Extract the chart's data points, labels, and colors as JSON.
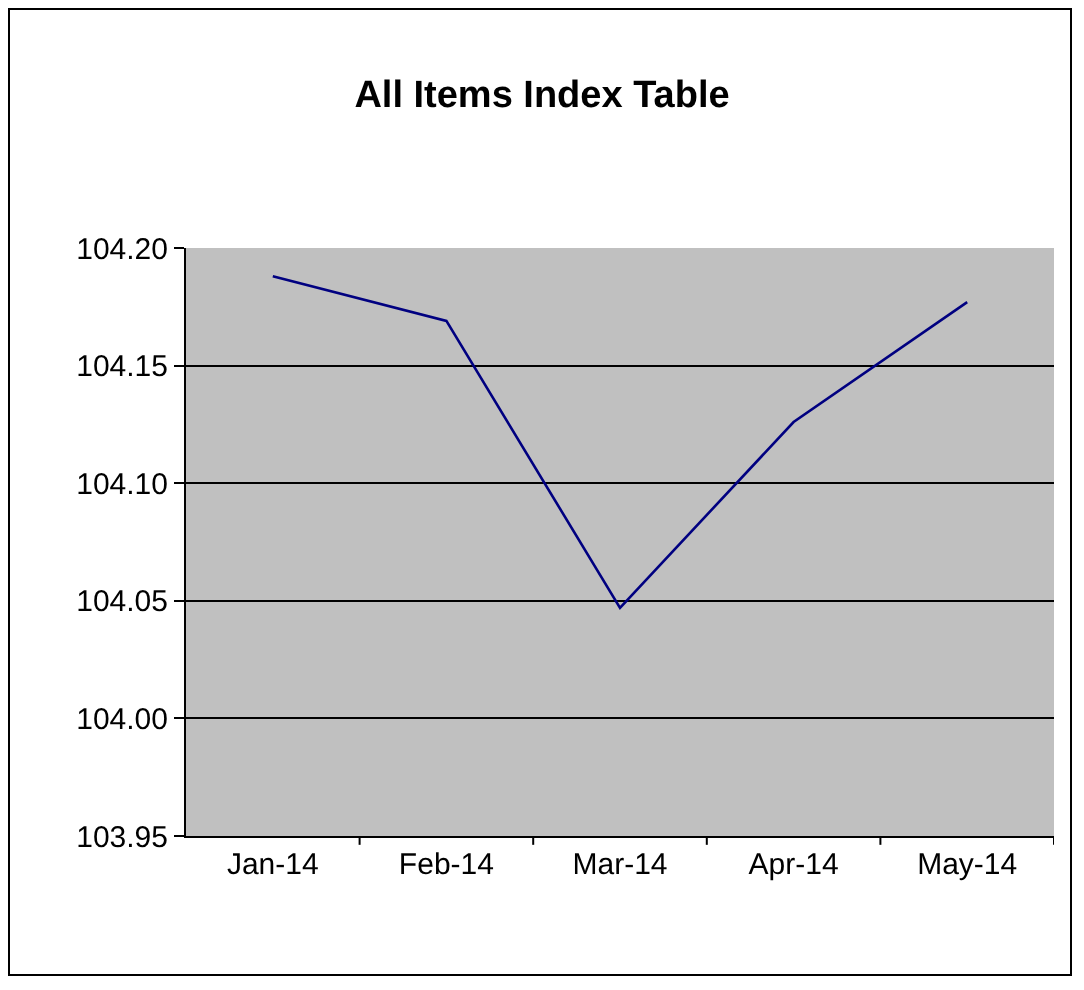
{
  "chart_data": {
    "type": "line",
    "title": "All Items Index Table",
    "categories": [
      "Jan-14",
      "Feb-14",
      "Mar-14",
      "Apr-14",
      "May-14"
    ],
    "series": [
      {
        "color": "#000080",
        "values": [
          104.188,
          104.169,
          104.047,
          104.126,
          104.177
        ]
      }
    ],
    "ylim": [
      103.95,
      104.2
    ],
    "yticks": [
      {
        "value": 103.95,
        "label": "103.95"
      },
      {
        "value": 104,
        "label": "104.00"
      },
      {
        "value": 104.05,
        "label": "104.05"
      },
      {
        "value": 104.1,
        "label": "104.10"
      },
      {
        "value": 104.15,
        "label": "104.15"
      },
      {
        "value": 104.2,
        "label": "104.20"
      }
    ],
    "grid": "y",
    "line_style": "solid"
  }
}
